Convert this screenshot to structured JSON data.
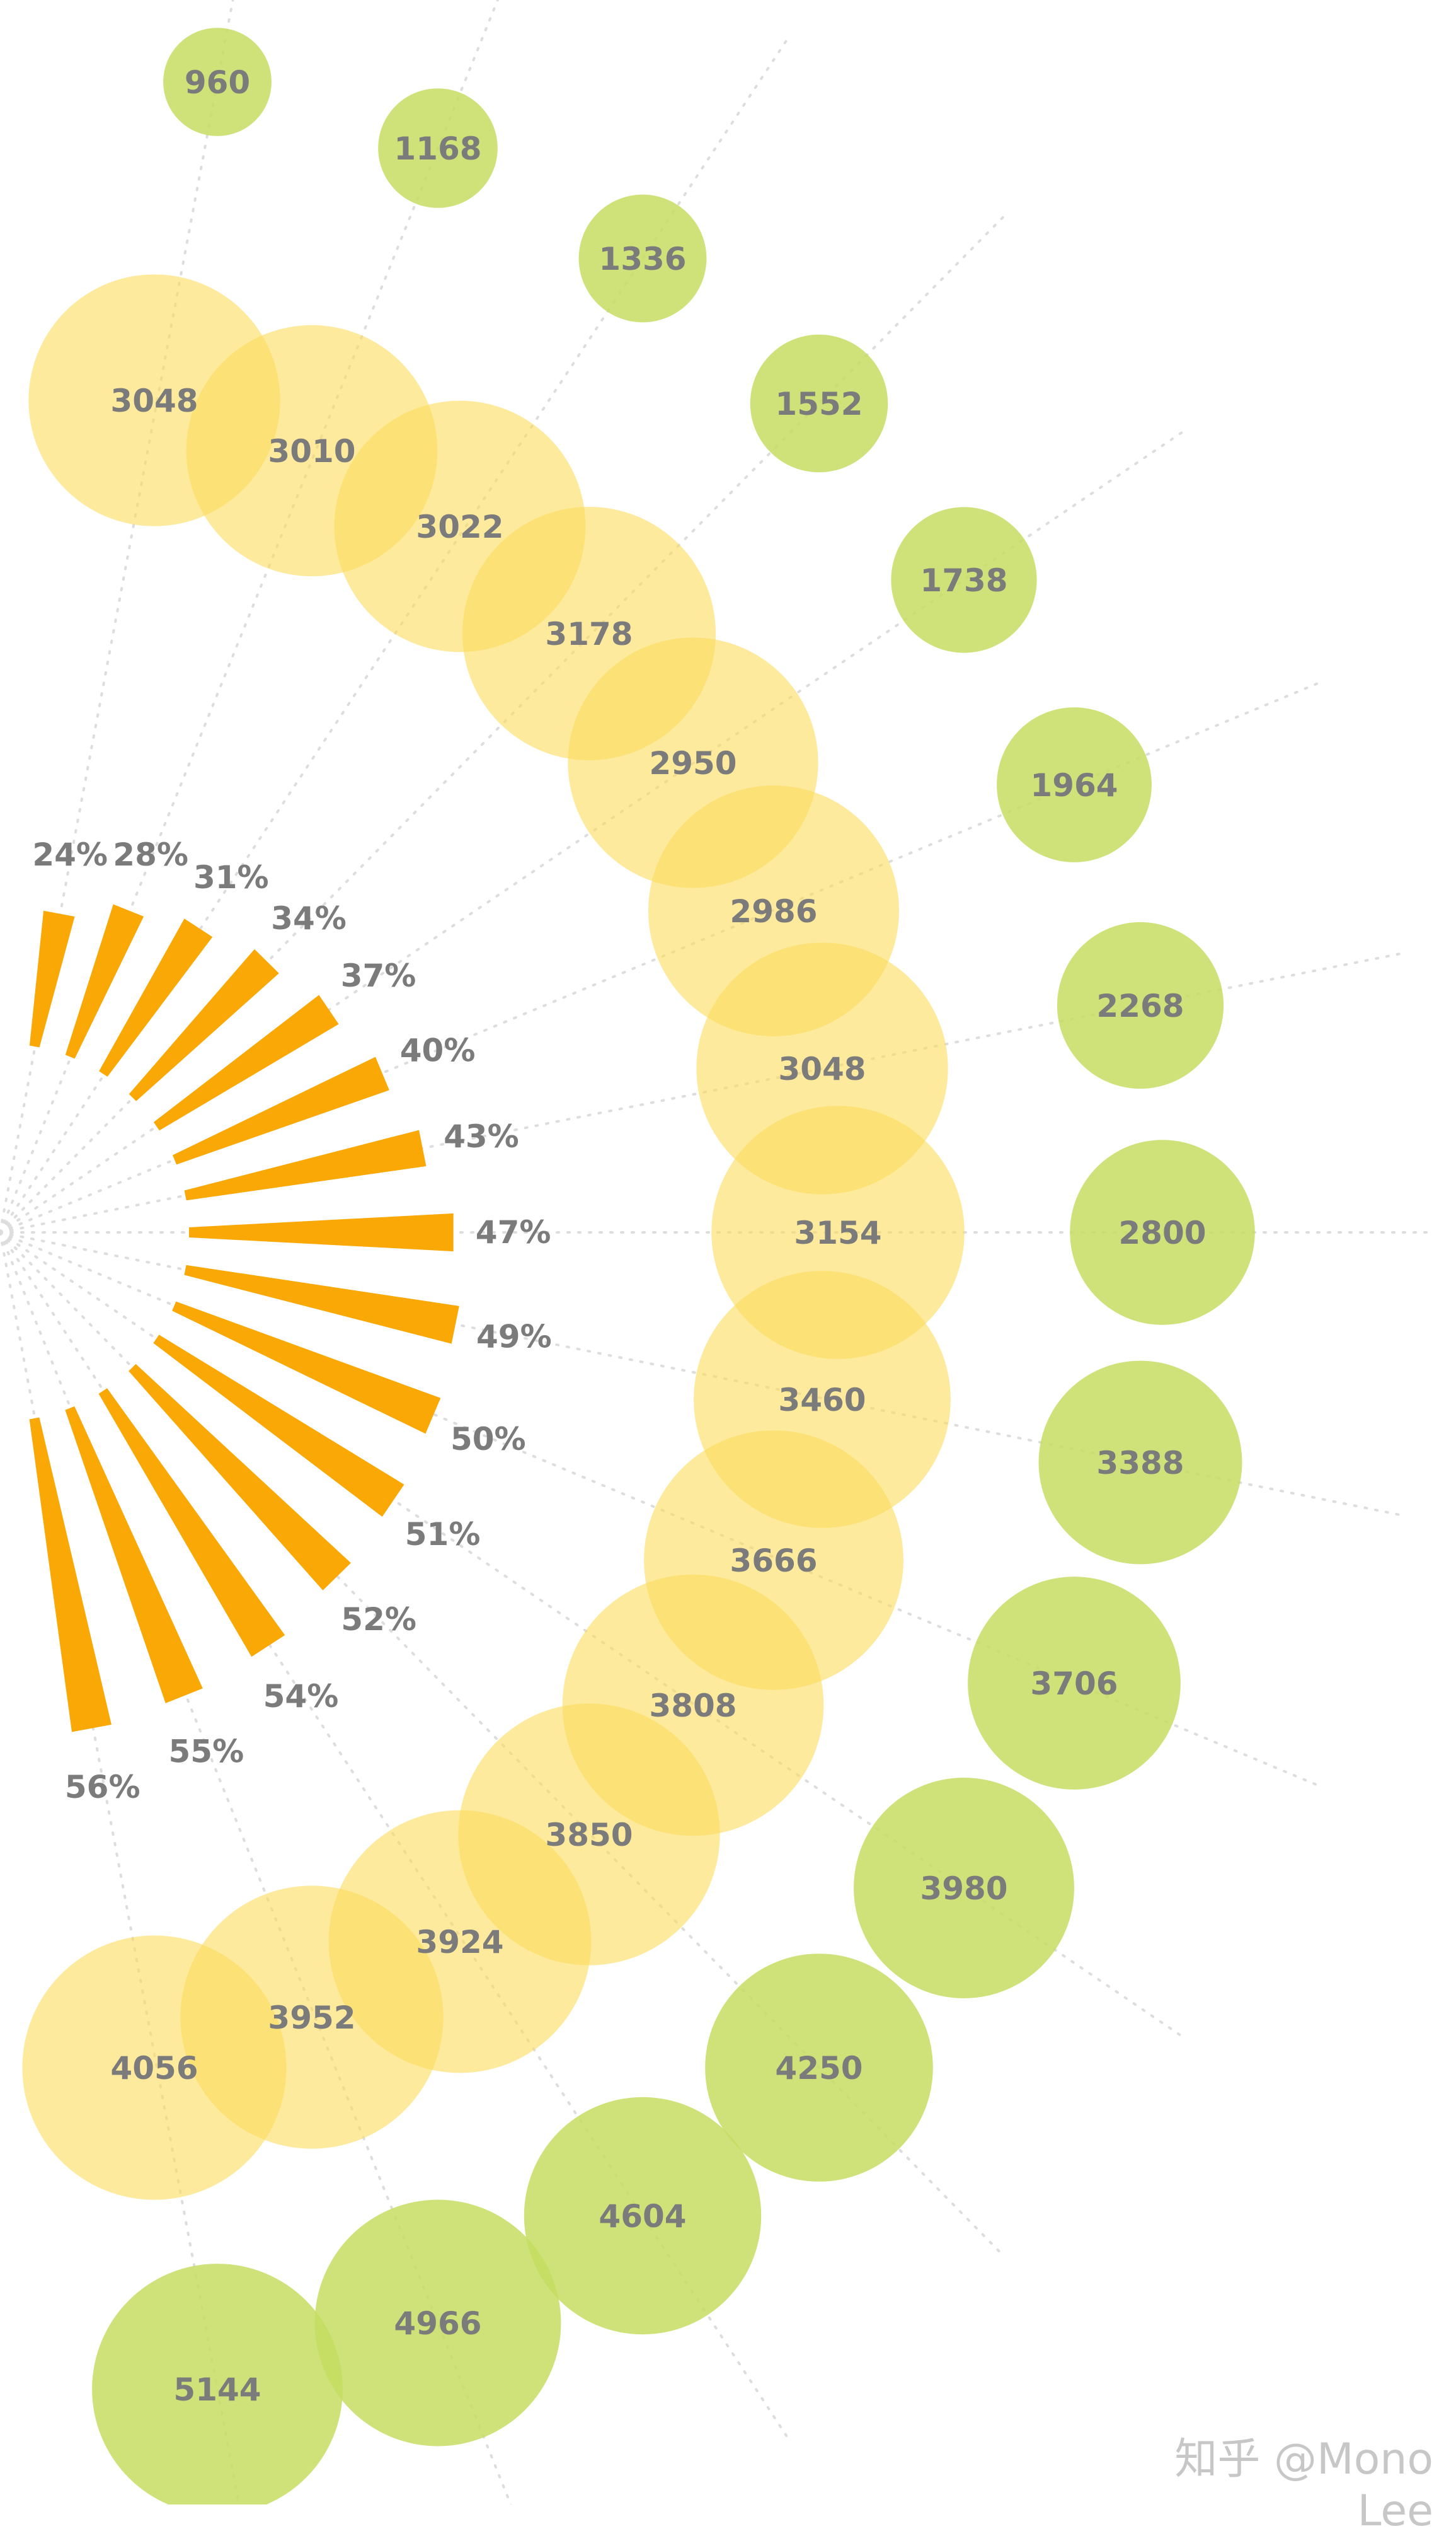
{
  "chart_data": {
    "type": "radial",
    "title": "",
    "inner_series": [
      {
        "value": 3048
      },
      {
        "value": 3010
      },
      {
        "value": 3022
      },
      {
        "value": 3178
      },
      {
        "value": 2950
      },
      {
        "value": 2986
      },
      {
        "value": 3048
      },
      {
        "value": 3154
      },
      {
        "value": 3460
      },
      {
        "value": 3666
      },
      {
        "value": 3808
      },
      {
        "value": 3850
      },
      {
        "value": 3924
      },
      {
        "value": 3952
      },
      {
        "value": 4056
      }
    ],
    "outer_series": [
      {
        "value": 960
      },
      {
        "value": 1168
      },
      {
        "value": 1336
      },
      {
        "value": 1552
      },
      {
        "value": 1738
      },
      {
        "value": 1964
      },
      {
        "value": 2268
      },
      {
        "value": 2800
      },
      {
        "value": 3388
      },
      {
        "value": 3706
      },
      {
        "value": 3980
      },
      {
        "value": 4250
      },
      {
        "value": 4604
      },
      {
        "value": 4966
      },
      {
        "value": 5144
      }
    ],
    "bar_series": [
      {
        "value": 24,
        "label": "24%"
      },
      {
        "value": 28,
        "label": "28%"
      },
      {
        "value": 31,
        "label": "31%"
      },
      {
        "value": 34,
        "label": "34%"
      },
      {
        "value": 37,
        "label": "37%"
      },
      {
        "value": 40,
        "label": "40%"
      },
      {
        "value": 43,
        "label": "43%"
      },
      {
        "value": 47,
        "label": "47%"
      },
      {
        "value": 49,
        "label": "49%"
      },
      {
        "value": 50,
        "label": "50%"
      },
      {
        "value": 51,
        "label": "51%"
      },
      {
        "value": 52,
        "label": "52%"
      },
      {
        "value": 54,
        "label": "54%"
      },
      {
        "value": 55,
        "label": "55%"
      },
      {
        "value": 56,
        "label": "56%"
      }
    ]
  },
  "colors": {
    "inner_bubble": "#fbdc5c",
    "outer_bubble": "#c6dd61",
    "bar": "#f9a805",
    "label": "#7b7b7b",
    "guide": "#dddddd"
  },
  "watermark": "知乎 @Mono Lee"
}
